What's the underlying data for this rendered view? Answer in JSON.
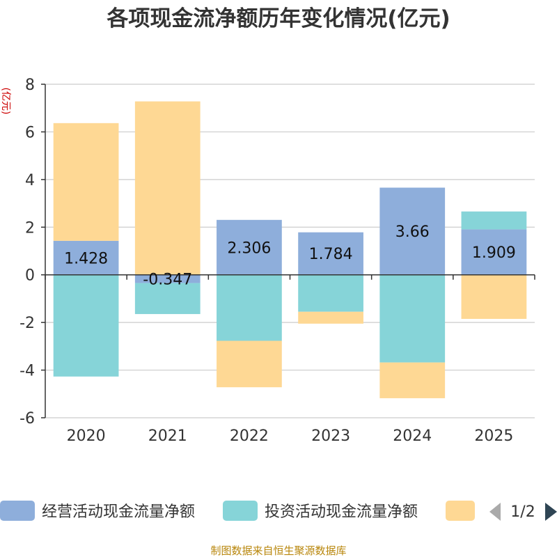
{
  "chart_data": {
    "type": "bar",
    "stacked": true,
    "title": "各项现金流净额历年变化情况(亿元)",
    "ylabel": "(亿元)",
    "xlabel": "",
    "categories": [
      "2020",
      "2021",
      "2022",
      "2023",
      "2024",
      "2025"
    ],
    "ylim": [
      -6,
      8
    ],
    "yticks": [
      -6,
      -4,
      -2,
      0,
      2,
      4,
      6,
      8
    ],
    "grid": true,
    "series": [
      {
        "name": "经营活动现金流量净额",
        "color": "#8eaedb",
        "values": [
          1.428,
          -0.347,
          2.306,
          1.784,
          3.66,
          1.909
        ],
        "labels": [
          "1.428",
          "-0.347",
          "2.306",
          "1.784",
          "3.66",
          "1.909"
        ]
      },
      {
        "name": "投资活动现金流量净额",
        "color": "#86d4d8",
        "values": [
          -4.27,
          -1.3,
          -2.77,
          -1.55,
          -3.68,
          0.75
        ]
      },
      {
        "name": "",
        "color": "#fed894",
        "values": [
          4.94,
          7.28,
          -1.95,
          -0.5,
          -1.5,
          -1.85
        ]
      }
    ],
    "legend": {
      "placement": "bottom",
      "page": "1/2"
    }
  },
  "source": "制图数据来自恒生聚源数据库"
}
